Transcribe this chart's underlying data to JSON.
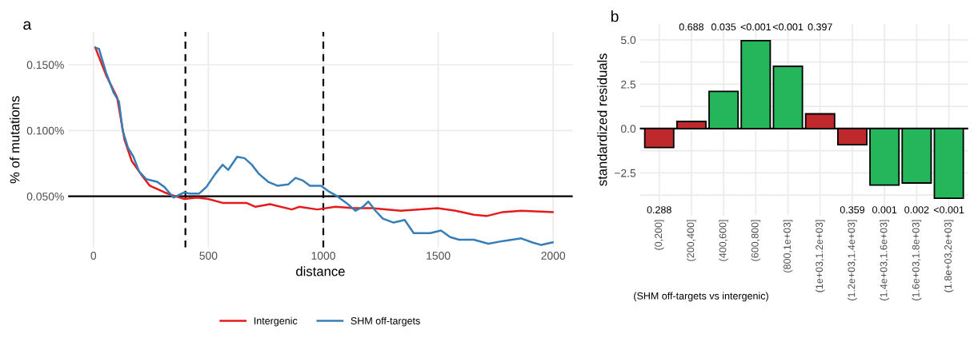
{
  "chart_data": [
    {
      "type": "line",
      "title": "a",
      "xlabel": "distance",
      "ylabel": "% of mutations",
      "xlim": [
        -110,
        2085
      ],
      "xticks": [
        0,
        500,
        1000,
        1500,
        2000
      ],
      "ylim": [
        0.011,
        0.175
      ],
      "yticks": [
        {
          "value": 0.05,
          "label": "0.050%"
        },
        {
          "value": 0.1,
          "label": "0.100%"
        },
        {
          "value": 0.15,
          "label": "0.150%"
        }
      ],
      "grid": true,
      "legend": "bottom",
      "line_style": "solid",
      "ref_lines": [
        {
          "axis": "y",
          "value": 0.05,
          "color": "#000000",
          "line_style": "solid"
        },
        {
          "axis": "x",
          "value": 400,
          "color": "#000000",
          "line_style": "dashed"
        },
        {
          "axis": "x",
          "value": 1000,
          "color": "#000000",
          "line_style": "dashed"
        }
      ],
      "series": [
        {
          "name": "Intergenic",
          "color": "#e41a1c",
          "x": [
            8,
            55,
            103,
            135,
            166,
            206,
            245,
            309,
            356,
            396,
            451,
            499,
            562,
            665,
            705,
            768,
            863,
            895,
            974,
            1053,
            1132,
            1211,
            1338,
            1497,
            1576,
            1655,
            1710,
            1781,
            1861,
            1998
          ],
          "values": [
            0.163,
            0.142,
            0.125,
            0.093,
            0.077,
            0.067,
            0.058,
            0.053,
            0.05,
            0.048,
            0.049,
            0.048,
            0.045,
            0.045,
            0.042,
            0.044,
            0.04,
            0.042,
            0.04,
            0.042,
            0.041,
            0.041,
            0.039,
            0.041,
            0.039,
            0.036,
            0.035,
            0.038,
            0.039,
            0.038
          ]
        },
        {
          "name": "SHM off-targets",
          "color": "#377eb8",
          "x": [
            8,
            24,
            55,
            87,
            111,
            127,
            150,
            174,
            198,
            230,
            277,
            309,
            348,
            372,
            396,
            420,
            459,
            491,
            530,
            562,
            586,
            625,
            657,
            689,
            720,
            760,
            800,
            847,
            879,
            911,
            942,
            990,
            1021,
            1061,
            1100,
            1140,
            1172,
            1196,
            1227,
            1259,
            1306,
            1354,
            1393,
            1465,
            1512,
            1552,
            1591,
            1655,
            1718,
            1781,
            1861,
            1908,
            1948,
            1998
          ],
          "values": [
            0.163,
            0.162,
            0.144,
            0.129,
            0.122,
            0.1,
            0.087,
            0.08,
            0.069,
            0.063,
            0.061,
            0.057,
            0.049,
            0.051,
            0.053,
            0.052,
            0.052,
            0.057,
            0.067,
            0.074,
            0.07,
            0.08,
            0.079,
            0.074,
            0.067,
            0.061,
            0.058,
            0.059,
            0.064,
            0.062,
            0.058,
            0.058,
            0.054,
            0.05,
            0.045,
            0.039,
            0.042,
            0.046,
            0.039,
            0.033,
            0.03,
            0.032,
            0.022,
            0.022,
            0.024,
            0.019,
            0.017,
            0.017,
            0.014,
            0.016,
            0.018,
            0.015,
            0.013,
            0.015
          ]
        }
      ]
    },
    {
      "type": "bar",
      "title": "b",
      "xlabel": "(SHM off-targets vs intergenic)",
      "ylabel": "standardized residuals",
      "ylim": [
        -4.9,
        5.9
      ],
      "yticks": [
        {
          "value": -3.75,
          "label": null
        },
        {
          "value": -2.5,
          "label": "−2.5"
        },
        {
          "value": -1.25,
          "label": null
        },
        {
          "value": 0,
          "label": "0.0"
        },
        {
          "value": 1.25,
          "label": null
        },
        {
          "value": 2.5,
          "label": "2.5"
        },
        {
          "value": 3.75,
          "label": null
        },
        {
          "value": 5,
          "label": "5.0"
        }
      ],
      "grid": true,
      "categories": [
        "(0,200]",
        "(200,400]",
        "(400,600]",
        "(600,800]",
        "(800,1e+03]",
        "(1e+03,1.2e+03]",
        "(1.2e+03,1.4e+03]",
        "(1.4e+03,1.6e+03]",
        "(1.6e+03,1.8e+03]",
        "(1.8e+03,2e+03]"
      ],
      "values": [
        -1.07,
        0.4,
        2.1,
        4.96,
        3.51,
        0.83,
        -0.91,
        -3.19,
        -3.07,
        -3.93
      ],
      "colors": [
        "#c0292b",
        "#c0292b",
        "#25b55a",
        "#25b55a",
        "#25b55a",
        "#c0292b",
        "#c0292b",
        "#25b55a",
        "#25b55a",
        "#25b55a"
      ],
      "ref_lines": [
        {
          "axis": "y",
          "value": 0,
          "color": "#000000",
          "line_style": "solid"
        }
      ],
      "annotations": [
        "0.288",
        "0.688",
        "0.035",
        "<0.001",
        "<0.001",
        "0.397",
        "0.359",
        "0.001",
        "0.002",
        "<0.001"
      ]
    }
  ]
}
